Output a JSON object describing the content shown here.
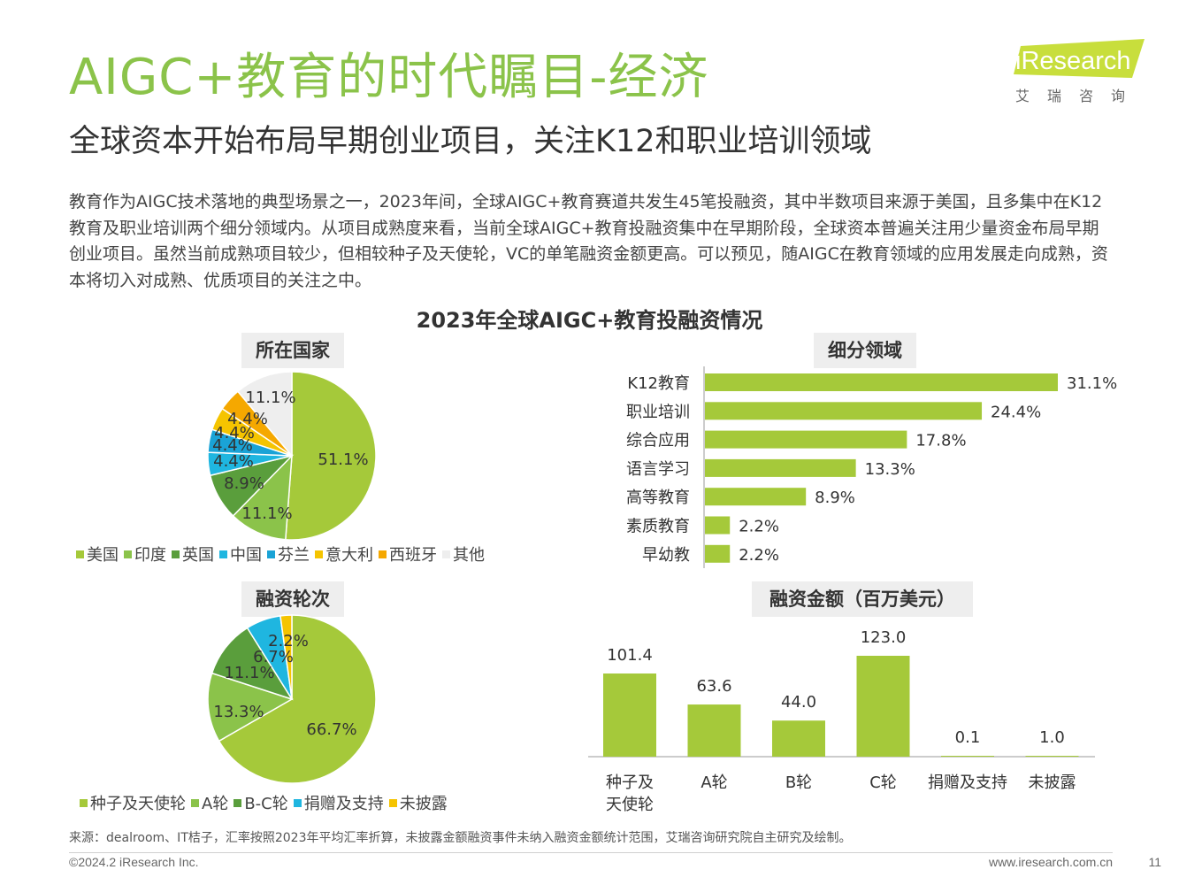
{
  "header": {
    "title": "AIGC+教育的时代瞩目-经济",
    "subtitle": "全球资本开始布局早期创业项目，关注K12和职业培训领域",
    "intro": "教育作为AIGC技术落地的典型场景之一，2023年间，全球AIGC+教育赛道共发生45笔投融资，其中半数项目来源于美国，且多集中在K12教育及职业培训两个细分领域内。从项目成熟度来看，当前全球AIGC+教育投融资集中在早期阶段，全球资本普遍关注用少量资金布局早期创业项目。虽然当前成熟项目较少，但相较种子及天使轮，VC的单笔融资金额更高。可以预见，随AIGC在教育领域的应用发展走向成熟，资本将切入对成熟、优质项目的关注之中。"
  },
  "logo": {
    "word": "iResearch",
    "cn": "艾瑞咨询"
  },
  "main_chart_title": "2023年全球AIGC+教育投融资情况",
  "chart_data": [
    {
      "id": "country",
      "type": "pie",
      "title": "所在国家",
      "categories": [
        "美国",
        "印度",
        "英国",
        "中国",
        "芬兰",
        "意大利",
        "西班牙",
        "其他"
      ],
      "values": [
        51.1,
        11.1,
        8.9,
        4.4,
        4.4,
        4.4,
        4.4,
        11.1
      ],
      "labels": [
        "51.1%",
        "11.1%",
        "8.9%",
        "4.4%",
        "4.4%",
        "4.4%",
        "4.4%",
        "11.1%"
      ],
      "colors": [
        "#a5c93a",
        "#8bc34a",
        "#5a9e3c",
        "#1fb6e0",
        "#1aa3d6",
        "#f5c400",
        "#f5a800",
        "#eeeeee"
      ]
    },
    {
      "id": "segment",
      "type": "bar",
      "orientation": "horizontal",
      "title": "细分领域",
      "categories": [
        "K12教育",
        "职业培训",
        "综合应用",
        "语言学习",
        "高等教育",
        "素质教育",
        "早幼教"
      ],
      "values": [
        31.1,
        24.4,
        17.8,
        13.3,
        8.9,
        2.2,
        2.2
      ],
      "labels": [
        "31.1%",
        "24.4%",
        "17.8%",
        "13.3%",
        "8.9%",
        "2.2%",
        "2.2%"
      ],
      "color": "#a5c93a"
    },
    {
      "id": "round",
      "type": "pie",
      "title": "融资轮次",
      "categories": [
        "种子及天使轮",
        "A轮",
        "B-C轮",
        "捐赠及支持",
        "未披露"
      ],
      "values": [
        66.7,
        13.3,
        11.1,
        6.7,
        2.2
      ],
      "labels": [
        "66.7%",
        "13.3%",
        "11.1%",
        "6.7%",
        "2.2%"
      ],
      "colors": [
        "#a5c93a",
        "#8bc34a",
        "#5a9e3c",
        "#1fb6e0",
        "#f5c400"
      ]
    },
    {
      "id": "amount",
      "type": "bar",
      "title": "融资金额（百万美元）",
      "categories": [
        "种子及天使轮",
        "A轮",
        "B轮",
        "C轮",
        "捐赠及支持",
        "未披露"
      ],
      "category_lines": [
        [
          "种子及",
          "天使轮"
        ],
        [
          "A轮"
        ],
        [
          "B轮"
        ],
        [
          "C轮"
        ],
        [
          "捐赠及支持"
        ],
        [
          "未披露"
        ]
      ],
      "values": [
        101.4,
        63.6,
        44.0,
        123.0,
        0.1,
        1.0
      ],
      "labels": [
        "101.4",
        "63.6",
        "44.0",
        "123.0",
        "0.1",
        "1.0"
      ],
      "color": "#a5c93a"
    }
  ],
  "footer": {
    "source": "来源：dealroom、IT桔子，汇率按照2023年平均汇率折算，未披露金额融资事件未纳入融资金额统计范围，艾瑞咨询研究院自主研究及绘制。",
    "copyright": "©2024.2 iResearch Inc.",
    "website": "www.iresearch.com.cn",
    "page_number": "11"
  }
}
